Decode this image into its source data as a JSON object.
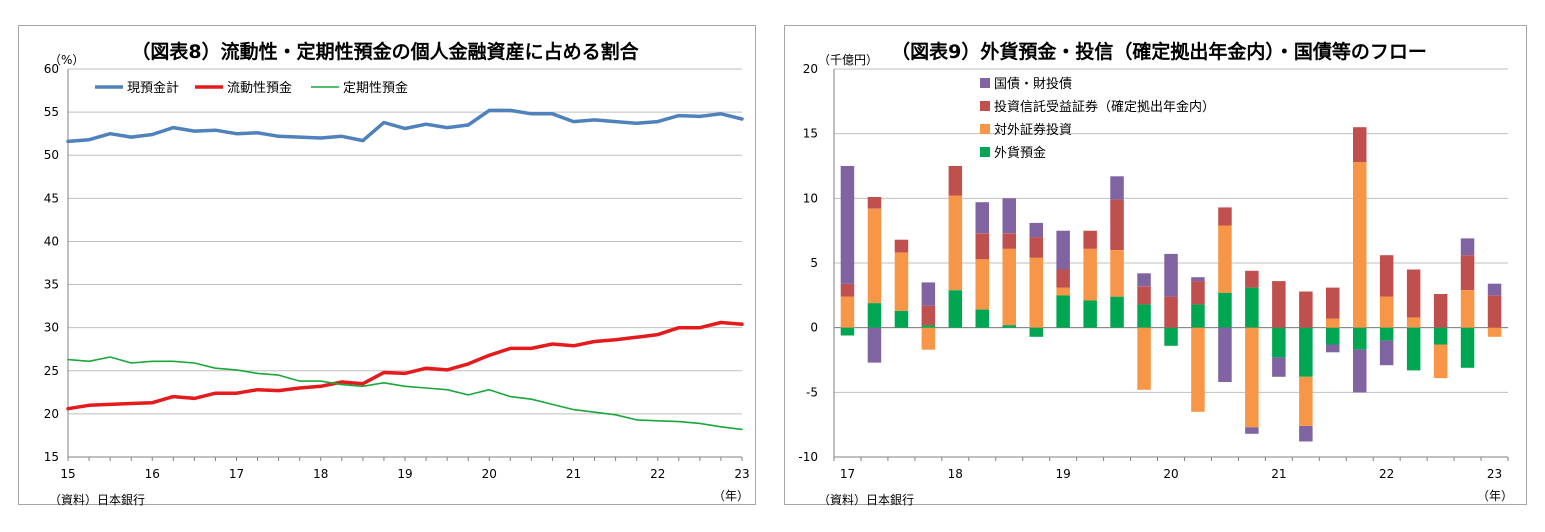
{
  "left_chart": {
    "chart_data": {
      "type": "line",
      "title": "（図表8）流動性・定期性預金の個人金融資産に占める割合",
      "unit": "（%）",
      "source": "（資料）日本銀行",
      "xunit": "（年）",
      "x_tick_labels": [
        "15",
        "16",
        "17",
        "18",
        "19",
        "20",
        "21",
        "22",
        "23"
      ],
      "y_ticks": [
        15,
        20,
        25,
        30,
        35,
        40,
        45,
        50,
        55,
        60
      ],
      "ylim": [
        15,
        60
      ],
      "x": [
        "2015Q1",
        "2015Q2",
        "2015Q3",
        "2015Q4",
        "2016Q1",
        "2016Q2",
        "2016Q3",
        "2016Q4",
        "2017Q1",
        "2017Q2",
        "2017Q3",
        "2017Q4",
        "2018Q1",
        "2018Q2",
        "2018Q3",
        "2018Q4",
        "2019Q1",
        "2019Q2",
        "2019Q3",
        "2019Q4",
        "2020Q1",
        "2020Q2",
        "2020Q3",
        "2020Q4",
        "2021Q1",
        "2021Q2",
        "2021Q3",
        "2021Q4",
        "2022Q1",
        "2022Q2",
        "2022Q3",
        "2022Q4",
        "2023Q1"
      ],
      "legend_position": "top-left",
      "series": [
        {
          "name": "現預金計",
          "color": "#4f81bd",
          "width": 3.5,
          "values": [
            51.6,
            51.8,
            52.5,
            52.1,
            52.4,
            53.2,
            52.8,
            52.9,
            52.5,
            52.6,
            52.2,
            52.1,
            52.0,
            52.2,
            51.7,
            53.8,
            53.1,
            53.6,
            53.2,
            53.5,
            55.2,
            55.2,
            54.8,
            54.8,
            53.9,
            54.1,
            53.9,
            53.7,
            53.9,
            54.6,
            54.5,
            54.8,
            54.2
          ]
        },
        {
          "name": "流動性預金",
          "color": "#e41a1c",
          "width": 3.5,
          "values": [
            20.6,
            21.0,
            21.1,
            21.2,
            21.3,
            22.0,
            21.8,
            22.4,
            22.4,
            22.8,
            22.7,
            23.0,
            23.2,
            23.7,
            23.5,
            24.8,
            24.7,
            25.3,
            25.1,
            25.8,
            26.8,
            27.6,
            27.6,
            28.1,
            27.9,
            28.4,
            28.6,
            28.9,
            29.2,
            30.0,
            30.0,
            30.6,
            30.4
          ]
        },
        {
          "name": "定期性預金",
          "color": "#1aa83a",
          "width": 1.6,
          "values": [
            26.3,
            26.1,
            26.6,
            25.9,
            26.1,
            26.1,
            25.9,
            25.3,
            25.1,
            24.7,
            24.5,
            23.8,
            23.8,
            23.4,
            23.2,
            23.6,
            23.2,
            23.0,
            22.8,
            22.2,
            22.8,
            22.0,
            21.7,
            21.1,
            20.5,
            20.2,
            19.9,
            19.3,
            19.2,
            19.1,
            18.9,
            18.5,
            18.2
          ]
        }
      ]
    }
  },
  "right_chart": {
    "chart_data": {
      "type": "bar",
      "stacked": true,
      "title": "（図表9）外貨預金・投信（確定拠出年金内）・国債等のフロー",
      "unit": "（千億円）",
      "source": "（資料）日本銀行",
      "xunit": "（年）",
      "x_tick_labels": [
        "17",
        "18",
        "19",
        "20",
        "21",
        "22",
        "23"
      ],
      "y_ticks": [
        -10,
        -5,
        0,
        5,
        10,
        15,
        20
      ],
      "ylim": [
        -10,
        20
      ],
      "categories": [
        "2017Q1",
        "2017Q2",
        "2017Q3",
        "2017Q4",
        "2018Q1",
        "2018Q2",
        "2018Q3",
        "2018Q4",
        "2019Q1",
        "2019Q2",
        "2019Q3",
        "2019Q4",
        "2020Q1",
        "2020Q2",
        "2020Q3",
        "2020Q4",
        "2021Q1",
        "2021Q2",
        "2021Q3",
        "2021Q4",
        "2022Q1",
        "2022Q2",
        "2022Q3",
        "2022Q4",
        "2023Q1"
      ],
      "legend_position": "top-left",
      "series": [
        {
          "name": "国債・財投債",
          "color": "#8064a2",
          "values": [
            9.1,
            -2.7,
            0,
            1.8,
            0,
            2.4,
            2.7,
            1.1,
            3.0,
            0,
            1.8,
            1.0,
            3.3,
            0.3,
            -4.2,
            -0.5,
            -1.5,
            -1.2,
            -0.6,
            -3.3,
            -1.9,
            0,
            0,
            1.3,
            0.9
          ]
        },
        {
          "name": "投資信託受益証券（確定拠出年金内）",
          "color": "#c0504d",
          "values": [
            1.0,
            0.9,
            1.0,
            1.5,
            2.3,
            2.0,
            1.2,
            1.6,
            1.4,
            1.4,
            3.9,
            1.4,
            2.4,
            1.8,
            1.4,
            1.3,
            3.6,
            2.8,
            2.4,
            2.7,
            3.2,
            3.7,
            2.6,
            2.7,
            2.5
          ]
        },
        {
          "name": "対外証券投資",
          "color": "#f79646",
          "values": [
            2.4,
            7.3,
            4.5,
            -1.7,
            7.3,
            3.9,
            5.9,
            5.4,
            0.6,
            4.0,
            3.6,
            -4.8,
            0,
            -6.5,
            5.2,
            -7.7,
            0,
            -3.8,
            0.7,
            12.8,
            2.4,
            0.8,
            -2.6,
            2.9,
            -0.7
          ]
        },
        {
          "name": "外貨預金",
          "color": "#00a651",
          "values": [
            -0.6,
            1.9,
            1.3,
            0.2,
            2.9,
            1.4,
            0.2,
            -0.7,
            2.5,
            2.1,
            2.4,
            1.8,
            -1.4,
            1.8,
            2.7,
            3.1,
            -2.3,
            -3.8,
            -1.3,
            -1.7,
            -1.0,
            -3.3,
            -1.3,
            -3.1,
            0
          ]
        }
      ]
    }
  }
}
